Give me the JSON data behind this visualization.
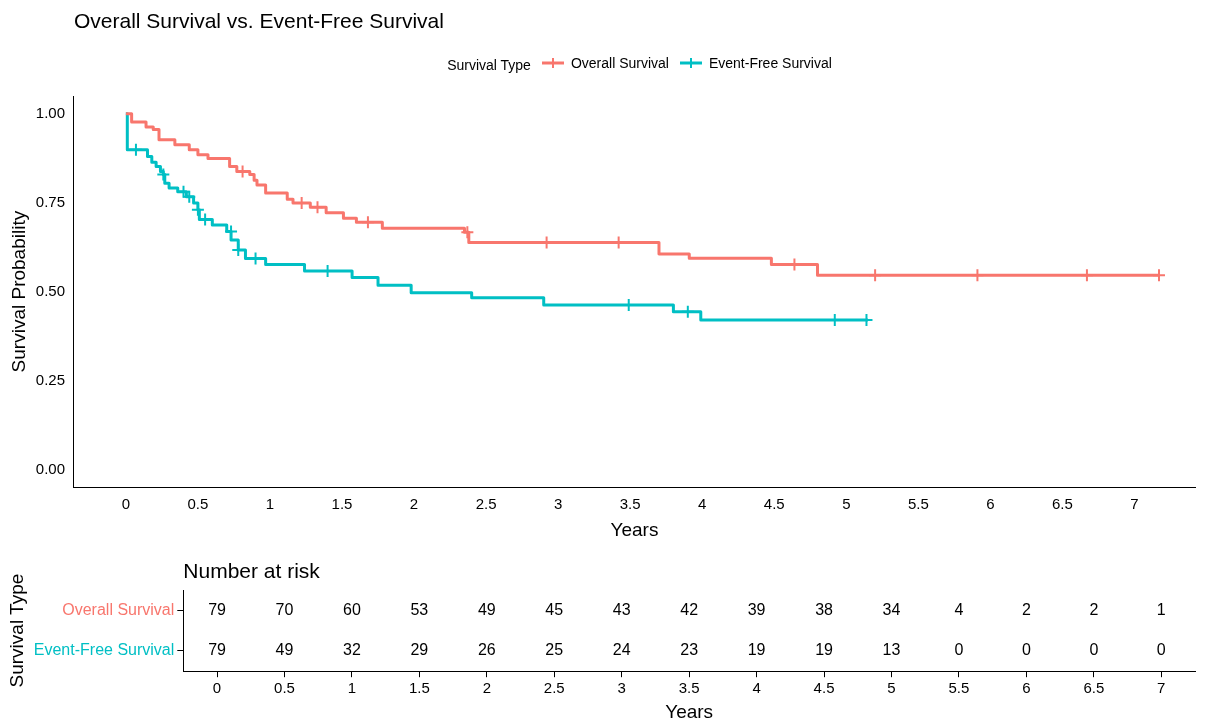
{
  "chart_data": [
    {
      "type": "step",
      "title": "Overall Survival vs. Event-Free Survival",
      "xlabel": "Years",
      "ylabel": "Survival Probability",
      "legend_title": "Survival Type",
      "legend": "top",
      "grid": false,
      "xlim": [
        -0.36,
        7.42
      ],
      "xticks": [
        0,
        0.5,
        1,
        1.5,
        2,
        2.5,
        3,
        3.5,
        4,
        4.5,
        5,
        5.5,
        6,
        6.5,
        7
      ],
      "ylim": [
        -0.05,
        1.05
      ],
      "yticks": [
        {
          "value": 0,
          "label": "0.00"
        },
        {
          "value": 0.25,
          "label": "0.25"
        },
        {
          "value": 0.5,
          "label": "0.50"
        },
        {
          "value": 0.75,
          "label": "0.75"
        },
        {
          "value": 1,
          "label": "1.00"
        }
      ],
      "series": [
        {
          "name": "Overall Survival",
          "color": "#f8766d",
          "x": [
            0,
            0.04,
            0.14,
            0.19,
            0.23,
            0.34,
            0.44,
            0.5,
            0.57,
            0.72,
            0.77,
            0.86,
            0.89,
            0.91,
            0.97,
            1.12,
            1.16,
            1.28,
            1.39,
            1.51,
            1.6,
            1.78,
            2.35,
            2.38,
            3.7,
            3.91,
            4.48,
            4.8,
            7.17
          ],
          "values": [
            1.0,
            0.977,
            0.963,
            0.956,
            0.927,
            0.913,
            0.899,
            0.885,
            0.874,
            0.852,
            0.838,
            0.829,
            0.813,
            0.8,
            0.777,
            0.76,
            0.749,
            0.737,
            0.722,
            0.706,
            0.695,
            0.678,
            0.667,
            0.638,
            0.606,
            0.594,
            0.576,
            0.546,
            0.546
          ]
        },
        {
          "name": "Event-Free Survival",
          "color": "#00bfc4",
          "x": [
            0,
            0.01,
            0.15,
            0.18,
            0.21,
            0.24,
            0.26,
            0.27,
            0.3,
            0.36,
            0.42,
            0.47,
            0.5,
            0.51,
            0.6,
            0.7,
            0.73,
            0.78,
            0.83,
            0.97,
            1.24,
            1.57,
            1.75,
            1.98,
            2.4,
            2.9,
            3.8,
            3.99,
            5.15
          ],
          "values": [
            1.0,
            0.899,
            0.88,
            0.864,
            0.852,
            0.838,
            0.829,
            0.805,
            0.791,
            0.781,
            0.767,
            0.749,
            0.73,
            0.703,
            0.687,
            0.669,
            0.645,
            0.617,
            0.593,
            0.576,
            0.558,
            0.54,
            0.518,
            0.497,
            0.483,
            0.462,
            0.443,
            0.42,
            0.42
          ]
        },
        {
          "type": "scatter",
          "marker": "cross",
          "color": "#f8766d",
          "x": [
            0.81,
            1.22,
            1.33,
            1.68,
            2.37,
            2.92,
            3.42,
            4.64,
            5.2,
            5.91,
            6.67,
            7.17
          ],
          "values": [
            0.838,
            0.749,
            0.737,
            0.695,
            0.667,
            0.638,
            0.638,
            0.576,
            0.546,
            0.546,
            0.546,
            0.546
          ]
        },
        {
          "type": "scatter",
          "marker": "cross",
          "color": "#00bfc4",
          "x": [
            0.07,
            0.26,
            0.4,
            0.44,
            0.5,
            0.55,
            0.73,
            0.78,
            0.9,
            1.4,
            3.49,
            3.9,
            4.92,
            5.14
          ],
          "values": [
            0.899,
            0.829,
            0.781,
            0.767,
            0.73,
            0.703,
            0.669,
            0.617,
            0.593,
            0.558,
            0.462,
            0.443,
            0.42,
            0.42
          ]
        }
      ]
    },
    {
      "type": "heatmap",
      "title": "Number at risk",
      "data_labels": true,
      "xlabel": "Years",
      "ylabel": "Survival Type",
      "categories": [
        "0",
        "0.5",
        "1",
        "1.5",
        "2",
        "2.5",
        "3",
        "3.5",
        "4",
        "4.5",
        "5",
        "5.5",
        "6",
        "6.5",
        "7"
      ],
      "y_categories": [
        "Overall Survival",
        "Event-Free Survival"
      ],
      "cells": [
        [
          79,
          70,
          60,
          53,
          49,
          45,
          43,
          42,
          39,
          38,
          34,
          4,
          2,
          2,
          1
        ],
        [
          79,
          49,
          32,
          29,
          26,
          25,
          24,
          23,
          19,
          19,
          13,
          0,
          0,
          0,
          0
        ]
      ]
    }
  ]
}
